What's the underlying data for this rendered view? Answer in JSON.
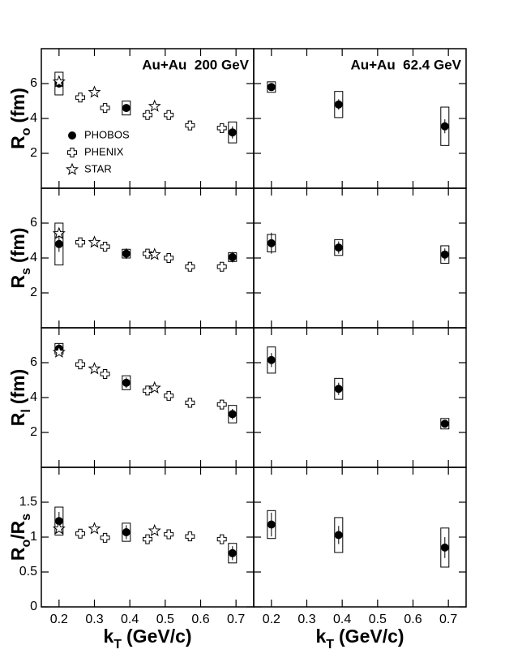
{
  "chart_data": [
    {
      "type": "scatter",
      "annotation": "Au+Au  200 GeV",
      "legend": "left",
      "ylabel": [
        {
          "text": "R"
        },
        {
          "text": "o",
          "sub": true
        },
        {
          "text": "(fm)"
        }
      ],
      "xlim": [
        0.15,
        0.75
      ],
      "xticks": [
        0.2,
        0.3,
        0.4,
        0.5,
        0.6,
        0.7
      ],
      "xtick_labels": false,
      "ylim": [
        0,
        8
      ],
      "yticks": [
        2,
        4,
        6
      ],
      "ytick_labels": true,
      "series": [
        {
          "name": "PHOBOS",
          "marker": "circle",
          "color": "#000000",
          "x": [
            0.2,
            0.39,
            0.69
          ],
          "values": [
            6.0,
            4.6,
            3.2
          ],
          "errors": [
            0.2,
            0.2,
            0.35
          ],
          "sys_errors": [
            0.65,
            0.4,
            0.6
          ]
        },
        {
          "name": "PHENIX",
          "marker": "cross",
          "color": "#000000",
          "x": [
            0.26,
            0.33,
            0.45,
            0.51,
            0.57,
            0.66
          ],
          "values": [
            5.2,
            4.6,
            4.2,
            4.2,
            3.6,
            3.45
          ]
        },
        {
          "name": "STAR",
          "marker": "star",
          "color": "#000000",
          "x": [
            0.2,
            0.3,
            0.47
          ],
          "values": [
            6.1,
            5.5,
            4.7
          ]
        }
      ]
    },
    {
      "type": "scatter",
      "annotation": "Au+Au  62.4 GeV",
      "xlim": [
        0.15,
        0.75
      ],
      "xticks": [
        0.2,
        0.3,
        0.4,
        0.5,
        0.6,
        0.7
      ],
      "xtick_labels": false,
      "ylim": [
        0,
        8
      ],
      "yticks": [
        2,
        4,
        6
      ],
      "ytick_labels": false,
      "series": [
        {
          "name": "PHOBOS",
          "marker": "circle",
          "color": "#000000",
          "x": [
            0.2,
            0.39,
            0.69
          ],
          "values": [
            5.8,
            4.8,
            3.55
          ],
          "errors": [
            0.2,
            0.3,
            0.4
          ],
          "sys_errors": [
            0.3,
            0.75,
            1.1
          ]
        }
      ]
    },
    {
      "type": "scatter",
      "ylabel": [
        {
          "text": "R"
        },
        {
          "text": "s",
          "sub": true
        },
        {
          "text": "(fm)"
        }
      ],
      "xlim": [
        0.15,
        0.75
      ],
      "xticks": [
        0.2,
        0.3,
        0.4,
        0.5,
        0.6,
        0.7
      ],
      "xtick_labels": false,
      "ylim": [
        0,
        8
      ],
      "yticks": [
        2,
        4,
        6
      ],
      "ytick_labels": true,
      "series": [
        {
          "name": "PHOBOS",
          "marker": "circle",
          "color": "#000000",
          "x": [
            0.2,
            0.39,
            0.69
          ],
          "values": [
            4.8,
            4.25,
            4.05
          ],
          "errors": [
            0.45,
            0.3,
            0.3
          ],
          "sys_errors": [
            1.2,
            0.25,
            0.25
          ]
        },
        {
          "name": "PHENIX",
          "marker": "cross",
          "color": "#000000",
          "x": [
            0.26,
            0.33,
            0.45,
            0.51,
            0.57,
            0.66
          ],
          "values": [
            4.9,
            4.65,
            4.25,
            4.0,
            3.5,
            3.5
          ]
        },
        {
          "name": "STAR",
          "marker": "star",
          "color": "#000000",
          "x": [
            0.2,
            0.3,
            0.47
          ],
          "values": [
            5.4,
            4.9,
            4.2
          ]
        }
      ]
    },
    {
      "type": "scatter",
      "xlim": [
        0.15,
        0.75
      ],
      "xticks": [
        0.2,
        0.3,
        0.4,
        0.5,
        0.6,
        0.7
      ],
      "xtick_labels": false,
      "ylim": [
        0,
        8
      ],
      "yticks": [
        2,
        4,
        6
      ],
      "ytick_labels": false,
      "series": [
        {
          "name": "PHOBOS",
          "marker": "circle",
          "color": "#000000",
          "x": [
            0.2,
            0.39,
            0.69
          ],
          "values": [
            4.85,
            4.6,
            4.2
          ],
          "errors": [
            0.6,
            0.35,
            0.35
          ],
          "sys_errors": [
            0.5,
            0.45,
            0.5
          ]
        }
      ]
    },
    {
      "type": "scatter",
      "ylabel": [
        {
          "text": "R"
        },
        {
          "text": "l",
          "sub": true
        },
        {
          "text": "(fm)"
        }
      ],
      "xlim": [
        0.15,
        0.75
      ],
      "xticks": [
        0.2,
        0.3,
        0.4,
        0.5,
        0.6,
        0.7
      ],
      "xtick_labels": false,
      "ylim": [
        0,
        8
      ],
      "yticks": [
        2,
        4,
        6
      ],
      "ytick_labels": true,
      "series": [
        {
          "name": "PHOBOS",
          "marker": "circle",
          "color": "#000000",
          "x": [
            0.2,
            0.39,
            0.69
          ],
          "values": [
            6.8,
            4.85,
            3.05
          ],
          "errors": [
            0.3,
            0.3,
            0.3
          ],
          "sys_errors": [
            0.3,
            0.4,
            0.5
          ]
        },
        {
          "name": "PHENIX",
          "marker": "cross",
          "color": "#000000",
          "x": [
            0.26,
            0.33,
            0.45,
            0.51,
            0.57,
            0.66
          ],
          "values": [
            5.9,
            5.35,
            4.4,
            4.1,
            3.7,
            3.6
          ]
        },
        {
          "name": "STAR",
          "marker": "star",
          "color": "#000000",
          "x": [
            0.2,
            0.3,
            0.47
          ],
          "values": [
            6.6,
            5.65,
            4.55
          ]
        }
      ]
    },
    {
      "type": "scatter",
      "xlim": [
        0.15,
        0.75
      ],
      "xticks": [
        0.2,
        0.3,
        0.4,
        0.5,
        0.6,
        0.7
      ],
      "xtick_labels": false,
      "ylim": [
        0,
        8
      ],
      "yticks": [
        2,
        4,
        6
      ],
      "ytick_labels": false,
      "series": [
        {
          "name": "PHOBOS",
          "marker": "circle",
          "color": "#000000",
          "x": [
            0.2,
            0.39,
            0.69
          ],
          "values": [
            6.15,
            4.5,
            2.5
          ],
          "errors": [
            0.4,
            0.35,
            0.2
          ],
          "sys_errors": [
            0.75,
            0.6,
            0.3
          ]
        }
      ]
    },
    {
      "type": "scatter",
      "ylabel": [
        {
          "text": "R"
        },
        {
          "text": "o",
          "sub": true
        },
        {
          "text": "/R"
        },
        {
          "text": "s",
          "sub": true
        }
      ],
      "xlabel": [
        {
          "text": "k"
        },
        {
          "text": "T",
          "sub": true
        },
        {
          "text": "(GeV/c)"
        }
      ],
      "xlim": [
        0.15,
        0.75
      ],
      "xticks": [
        0.2,
        0.3,
        0.4,
        0.5,
        0.6,
        0.7
      ],
      "xtick_labels": true,
      "ylim": [
        0,
        2
      ],
      "yticks": [
        0,
        0.5,
        1,
        1.5
      ],
      "ytick_labels": true,
      "series": [
        {
          "name": "PHOBOS",
          "marker": "circle",
          "color": "#000000",
          "x": [
            0.2,
            0.39,
            0.69
          ],
          "values": [
            1.23,
            1.07,
            0.77
          ],
          "errors": [
            0.13,
            0.1,
            0.1
          ],
          "sys_errors": [
            0.2,
            0.13,
            0.14
          ]
        },
        {
          "name": "PHENIX",
          "marker": "cross",
          "color": "#000000",
          "x": [
            0.26,
            0.33,
            0.45,
            0.51,
            0.57,
            0.66
          ],
          "values": [
            1.05,
            0.99,
            0.97,
            1.04,
            1.01,
            0.97
          ]
        },
        {
          "name": "STAR",
          "marker": "star",
          "color": "#000000",
          "x": [
            0.2,
            0.3,
            0.47
          ],
          "values": [
            1.12,
            1.12,
            1.09
          ]
        }
      ]
    },
    {
      "type": "scatter",
      "xlabel": [
        {
          "text": "k"
        },
        {
          "text": "T",
          "sub": true
        },
        {
          "text": "(GeV/c)"
        }
      ],
      "xlim": [
        0.15,
        0.75
      ],
      "xticks": [
        0.2,
        0.3,
        0.4,
        0.5,
        0.6,
        0.7
      ],
      "xtick_labels": true,
      "ylim": [
        0,
        2
      ],
      "yticks": [
        0,
        0.5,
        1,
        1.5
      ],
      "ytick_labels": false,
      "series": [
        {
          "name": "PHOBOS",
          "marker": "circle",
          "color": "#000000",
          "x": [
            0.2,
            0.39,
            0.69
          ],
          "values": [
            1.18,
            1.03,
            0.85
          ],
          "errors": [
            0.17,
            0.13,
            0.15
          ],
          "sys_errors": [
            0.2,
            0.25,
            0.28
          ]
        }
      ]
    }
  ]
}
